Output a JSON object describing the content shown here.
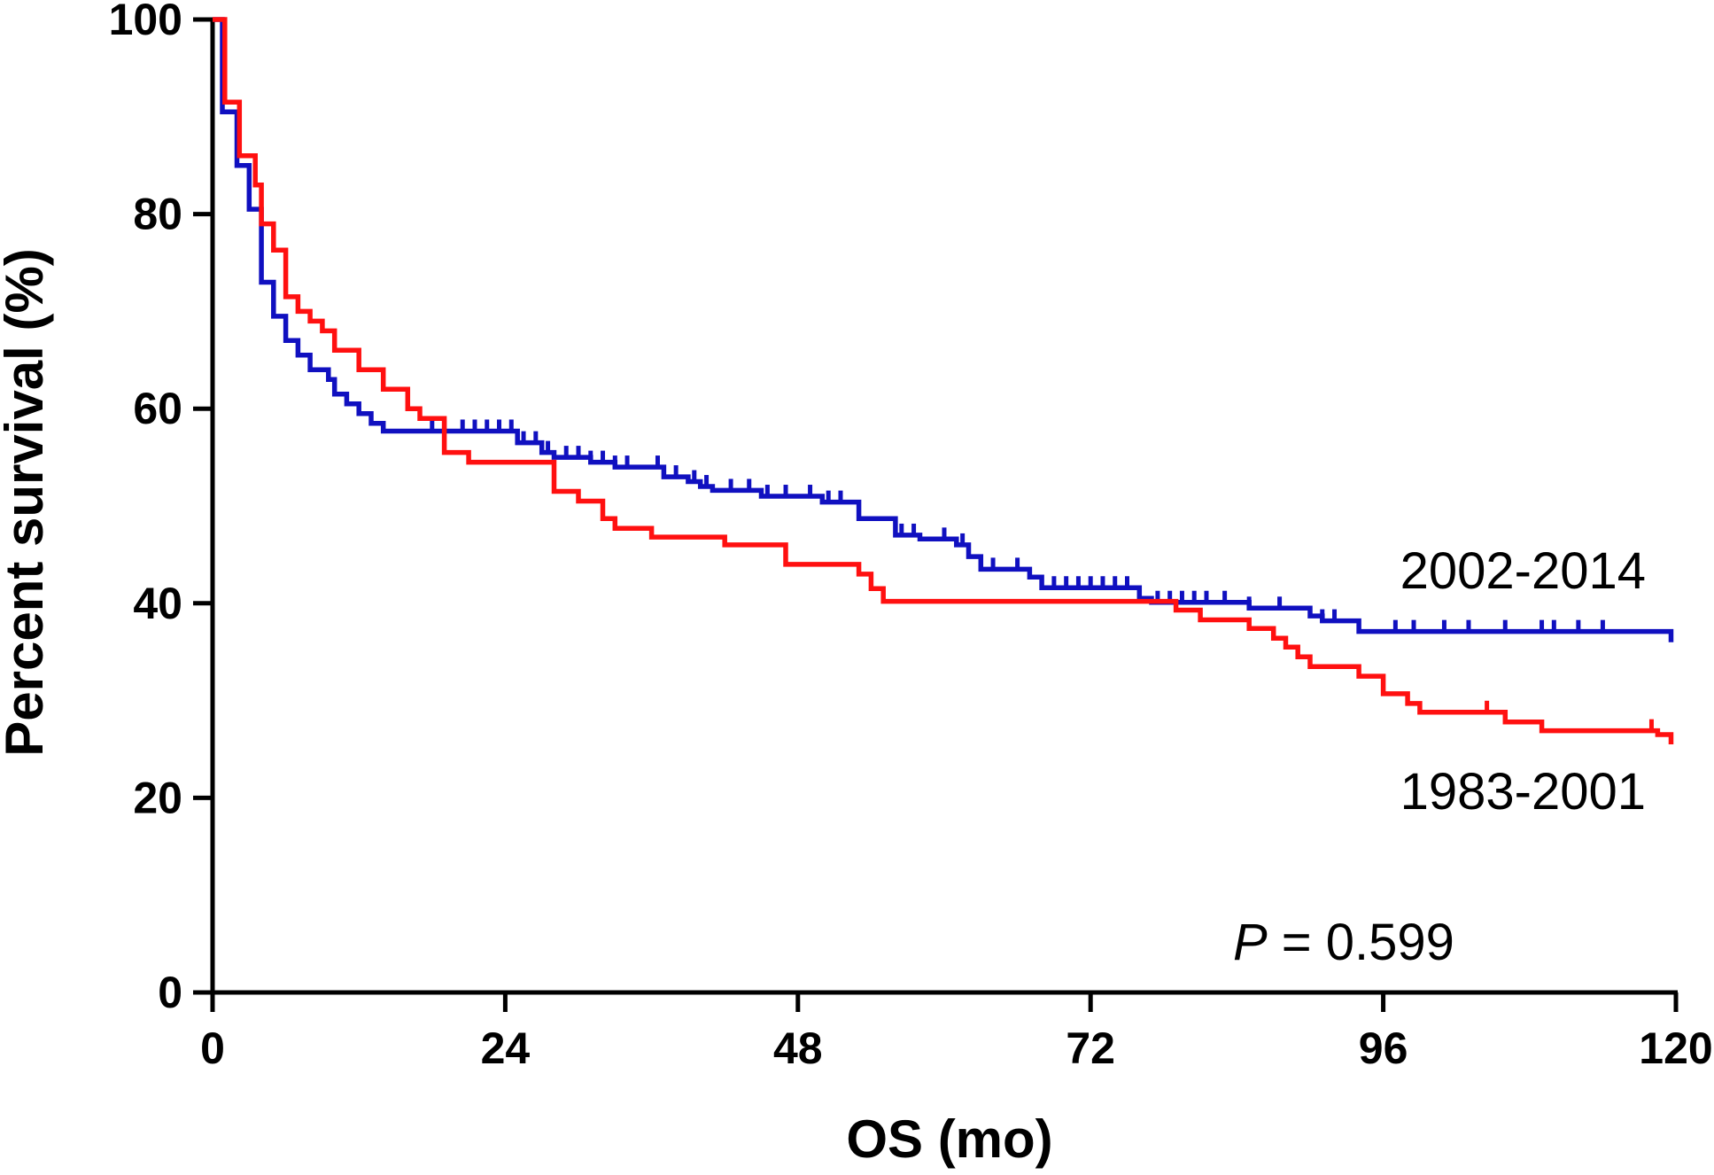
{
  "chart_data": {
    "type": "line",
    "xlabel": "OS (mo)",
    "ylabel": "Percent survival (%)",
    "xlim": [
      0,
      120
    ],
    "ylim": [
      0,
      100
    ],
    "xticks": [
      "0",
      "24",
      "48",
      "72",
      "96",
      "120"
    ],
    "yticks": [
      "0",
      "20",
      "40",
      "60",
      "80",
      "100"
    ],
    "grid": false,
    "legend": "inline labels at right end of curves",
    "annotation": {
      "p_label": "P",
      "p_value": " = 0.599"
    },
    "series": [
      {
        "name": "2002-2014",
        "color": "#1010c0",
        "steps": [
          [
            0,
            100
          ],
          [
            0.8,
            90.5
          ],
          [
            2,
            85
          ],
          [
            3,
            80.5
          ],
          [
            4,
            73
          ],
          [
            5,
            69.5
          ],
          [
            6,
            67
          ],
          [
            7,
            65.5
          ],
          [
            8,
            64
          ],
          [
            9.5,
            63
          ],
          [
            10,
            61.5
          ],
          [
            11,
            60.5
          ],
          [
            12,
            59.5
          ],
          [
            13,
            58.5
          ],
          [
            14,
            57.7
          ],
          [
            25,
            56.5
          ],
          [
            27,
            55.5
          ],
          [
            28,
            55
          ],
          [
            31,
            54.5
          ],
          [
            33,
            54
          ],
          [
            37,
            53
          ],
          [
            39,
            52.5
          ],
          [
            40,
            52
          ],
          [
            41,
            51.6
          ],
          [
            45,
            51
          ],
          [
            50,
            50.4
          ],
          [
            53,
            48.7
          ],
          [
            56,
            47
          ],
          [
            58,
            46.6
          ],
          [
            61,
            46
          ],
          [
            62,
            44.8
          ],
          [
            63,
            43.5
          ],
          [
            67,
            42.7
          ],
          [
            68,
            41.6
          ],
          [
            76,
            40.5
          ],
          [
            77,
            40.1
          ],
          [
            85,
            39.5
          ],
          [
            90,
            38.7
          ],
          [
            91,
            38.2
          ],
          [
            94,
            37.1
          ],
          [
            119.6,
            36
          ]
        ],
        "censors": [
          18,
          19,
          20.5,
          21.5,
          22.5,
          23.5,
          24.5,
          25.5,
          26.5,
          27.5,
          29,
          30,
          31,
          32,
          33,
          34,
          36.5,
          38,
          39.5,
          40.5,
          42.5,
          44,
          45.5,
          47,
          49,
          50.5,
          51.5,
          56.5,
          57.5,
          60,
          61.5,
          64,
          66,
          69,
          70,
          71,
          72,
          73,
          74,
          75,
          77.5,
          78.5,
          79.5,
          80.5,
          81.5,
          83,
          85,
          87.5,
          91,
          92,
          97,
          98.5,
          101,
          103,
          106,
          109,
          110,
          112,
          114
        ]
      },
      {
        "name": "1983-2001",
        "color": "#ff1010",
        "steps": [
          [
            0,
            100
          ],
          [
            1,
            91.5
          ],
          [
            2.2,
            86
          ],
          [
            3.5,
            83
          ],
          [
            4,
            79
          ],
          [
            5,
            76.3
          ],
          [
            6,
            71.5
          ],
          [
            7,
            70
          ],
          [
            8,
            69
          ],
          [
            9,
            68
          ],
          [
            10,
            66
          ],
          [
            12,
            64
          ],
          [
            14,
            62
          ],
          [
            16,
            60
          ],
          [
            17,
            59
          ],
          [
            19,
            55.5
          ],
          [
            21,
            54.5
          ],
          [
            28,
            51.5
          ],
          [
            30,
            50.5
          ],
          [
            32,
            48.7
          ],
          [
            33,
            47.7
          ],
          [
            36,
            46.8
          ],
          [
            42,
            46
          ],
          [
            47,
            44
          ],
          [
            53,
            43
          ],
          [
            54,
            41.5
          ],
          [
            55,
            40.2
          ],
          [
            79,
            39.3
          ],
          [
            81,
            38.3
          ],
          [
            85,
            37.4
          ],
          [
            87,
            36.4
          ],
          [
            88,
            35.5
          ],
          [
            89,
            34.5
          ],
          [
            90,
            33.5
          ],
          [
            94,
            32.5
          ],
          [
            96,
            30.7
          ],
          [
            98,
            29.7
          ],
          [
            99,
            28.8
          ],
          [
            106,
            27.8
          ],
          [
            109,
            26.9
          ],
          [
            118.5,
            26.5
          ],
          [
            119.6,
            25.5
          ]
        ],
        "censors": [
          104.5,
          118
        ]
      }
    ]
  }
}
